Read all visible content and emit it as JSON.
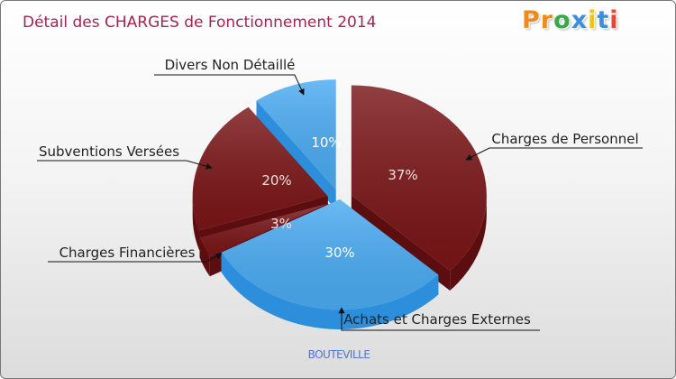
{
  "chart_data": {
    "type": "pie",
    "title": "Détail des CHARGES de Fonctionnement 2014",
    "subtitle": "BOUTEVILLE",
    "categories": [
      "Charges de Personnel",
      "Achats et Charges Externes",
      "Charges Financières",
      "Subventions Versées",
      "Divers Non Détaillé"
    ],
    "values": [
      37,
      30,
      3,
      20,
      10
    ],
    "value_labels": [
      "37%",
      "30%",
      "3%",
      "20%",
      "10%"
    ],
    "exploded": [
      true,
      false,
      true,
      true,
      true
    ],
    "legend": "callout labels"
  },
  "logo": {
    "text": "Proxiti"
  },
  "colors": {
    "dark_red": "#7a1517",
    "dark_red_side": "#5b0d0f",
    "blue": "#4aabf2",
    "blue_side": "#2d8fdc",
    "title": "#a0264e",
    "subtitle": "#4f76c8",
    "logo": [
      "#f08a1c",
      "#f08a1c",
      "#39a84a",
      "#3d8fd9",
      "#f0c21c",
      "#3d8fd9",
      "#e8462e"
    ]
  }
}
